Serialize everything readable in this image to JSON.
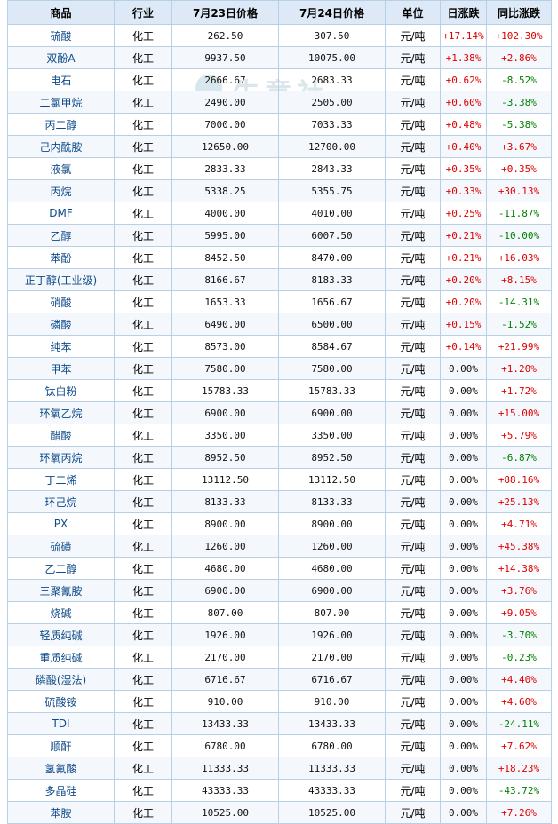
{
  "headers": [
    "商品",
    "行业",
    "7月23日价格",
    "7月24日价格",
    "单位",
    "日涨跌",
    "同比涨跌"
  ],
  "watermark": {
    "text": "生意社",
    "sub": "www.100ppi.com"
  },
  "rows": [
    {
      "name": "硫酸",
      "ind": "化工",
      "p1": "262.50",
      "p2": "307.50",
      "unit": "元/吨",
      "d": "+17.14%",
      "y": "+102.30%"
    },
    {
      "name": "双酚A",
      "ind": "化工",
      "p1": "9937.50",
      "p2": "10075.00",
      "unit": "元/吨",
      "d": "+1.38%",
      "y": "+2.86%"
    },
    {
      "name": "电石",
      "ind": "化工",
      "p1": "2666.67",
      "p2": "2683.33",
      "unit": "元/吨",
      "d": "+0.62%",
      "y": "-8.52%"
    },
    {
      "name": "二氯甲烷",
      "ind": "化工",
      "p1": "2490.00",
      "p2": "2505.00",
      "unit": "元/吨",
      "d": "+0.60%",
      "y": "-3.38%"
    },
    {
      "name": "丙二醇",
      "ind": "化工",
      "p1": "7000.00",
      "p2": "7033.33",
      "unit": "元/吨",
      "d": "+0.48%",
      "y": "-5.38%"
    },
    {
      "name": "己内酰胺",
      "ind": "化工",
      "p1": "12650.00",
      "p2": "12700.00",
      "unit": "元/吨",
      "d": "+0.40%",
      "y": "+3.67%"
    },
    {
      "name": "液氯",
      "ind": "化工",
      "p1": "2833.33",
      "p2": "2843.33",
      "unit": "元/吨",
      "d": "+0.35%",
      "y": "+0.35%"
    },
    {
      "name": "丙烷",
      "ind": "化工",
      "p1": "5338.25",
      "p2": "5355.75",
      "unit": "元/吨",
      "d": "+0.33%",
      "y": "+30.13%"
    },
    {
      "name": "DMF",
      "ind": "化工",
      "p1": "4000.00",
      "p2": "4010.00",
      "unit": "元/吨",
      "d": "+0.25%",
      "y": "-11.87%"
    },
    {
      "name": "乙醇",
      "ind": "化工",
      "p1": "5995.00",
      "p2": "6007.50",
      "unit": "元/吨",
      "d": "+0.21%",
      "y": "-10.00%"
    },
    {
      "name": "苯酚",
      "ind": "化工",
      "p1": "8452.50",
      "p2": "8470.00",
      "unit": "元/吨",
      "d": "+0.21%",
      "y": "+16.03%"
    },
    {
      "name": "正丁醇(工业级)",
      "ind": "化工",
      "p1": "8166.67",
      "p2": "8183.33",
      "unit": "元/吨",
      "d": "+0.20%",
      "y": "+8.15%"
    },
    {
      "name": "硝酸",
      "ind": "化工",
      "p1": "1653.33",
      "p2": "1656.67",
      "unit": "元/吨",
      "d": "+0.20%",
      "y": "-14.31%"
    },
    {
      "name": "磷酸",
      "ind": "化工",
      "p1": "6490.00",
      "p2": "6500.00",
      "unit": "元/吨",
      "d": "+0.15%",
      "y": "-1.52%"
    },
    {
      "name": "纯苯",
      "ind": "化工",
      "p1": "8573.00",
      "p2": "8584.67",
      "unit": "元/吨",
      "d": "+0.14%",
      "y": "+21.99%"
    },
    {
      "name": "甲苯",
      "ind": "化工",
      "p1": "7580.00",
      "p2": "7580.00",
      "unit": "元/吨",
      "d": "0.00%",
      "y": "+1.20%"
    },
    {
      "name": "钛白粉",
      "ind": "化工",
      "p1": "15783.33",
      "p2": "15783.33",
      "unit": "元/吨",
      "d": "0.00%",
      "y": "+1.72%"
    },
    {
      "name": "环氧乙烷",
      "ind": "化工",
      "p1": "6900.00",
      "p2": "6900.00",
      "unit": "元/吨",
      "d": "0.00%",
      "y": "+15.00%"
    },
    {
      "name": "醋酸",
      "ind": "化工",
      "p1": "3350.00",
      "p2": "3350.00",
      "unit": "元/吨",
      "d": "0.00%",
      "y": "+5.79%"
    },
    {
      "name": "环氧丙烷",
      "ind": "化工",
      "p1": "8952.50",
      "p2": "8952.50",
      "unit": "元/吨",
      "d": "0.00%",
      "y": "-6.87%"
    },
    {
      "name": "丁二烯",
      "ind": "化工",
      "p1": "13112.50",
      "p2": "13112.50",
      "unit": "元/吨",
      "d": "0.00%",
      "y": "+88.16%"
    },
    {
      "name": "环己烷",
      "ind": "化工",
      "p1": "8133.33",
      "p2": "8133.33",
      "unit": "元/吨",
      "d": "0.00%",
      "y": "+25.13%"
    },
    {
      "name": "PX",
      "ind": "化工",
      "p1": "8900.00",
      "p2": "8900.00",
      "unit": "元/吨",
      "d": "0.00%",
      "y": "+4.71%"
    },
    {
      "name": "硫磺",
      "ind": "化工",
      "p1": "1260.00",
      "p2": "1260.00",
      "unit": "元/吨",
      "d": "0.00%",
      "y": "+45.38%"
    },
    {
      "name": "乙二醇",
      "ind": "化工",
      "p1": "4680.00",
      "p2": "4680.00",
      "unit": "元/吨",
      "d": "0.00%",
      "y": "+14.38%"
    },
    {
      "name": "三聚氰胺",
      "ind": "化工",
      "p1": "6900.00",
      "p2": "6900.00",
      "unit": "元/吨",
      "d": "0.00%",
      "y": "+3.76%"
    },
    {
      "name": "烧碱",
      "ind": "化工",
      "p1": "807.00",
      "p2": "807.00",
      "unit": "元/吨",
      "d": "0.00%",
      "y": "+9.05%"
    },
    {
      "name": "轻质纯碱",
      "ind": "化工",
      "p1": "1926.00",
      "p2": "1926.00",
      "unit": "元/吨",
      "d": "0.00%",
      "y": "-3.70%"
    },
    {
      "name": "重质纯碱",
      "ind": "化工",
      "p1": "2170.00",
      "p2": "2170.00",
      "unit": "元/吨",
      "d": "0.00%",
      "y": "-0.23%"
    },
    {
      "name": "磷酸(湿法)",
      "ind": "化工",
      "p1": "6716.67",
      "p2": "6716.67",
      "unit": "元/吨",
      "d": "0.00%",
      "y": "+4.40%"
    },
    {
      "name": "硫酸铵",
      "ind": "化工",
      "p1": "910.00",
      "p2": "910.00",
      "unit": "元/吨",
      "d": "0.00%",
      "y": "+4.60%"
    },
    {
      "name": "TDI",
      "ind": "化工",
      "p1": "13433.33",
      "p2": "13433.33",
      "unit": "元/吨",
      "d": "0.00%",
      "y": "-24.11%"
    },
    {
      "name": "顺酐",
      "ind": "化工",
      "p1": "6780.00",
      "p2": "6780.00",
      "unit": "元/吨",
      "d": "0.00%",
      "y": "+7.62%"
    },
    {
      "name": "氢氟酸",
      "ind": "化工",
      "p1": "11333.33",
      "p2": "11333.33",
      "unit": "元/吨",
      "d": "0.00%",
      "y": "+18.23%"
    },
    {
      "name": "多晶硅",
      "ind": "化工",
      "p1": "43333.33",
      "p2": "43333.33",
      "unit": "元/吨",
      "d": "0.00%",
      "y": "-43.72%"
    },
    {
      "name": "苯胺",
      "ind": "化工",
      "p1": "10525.00",
      "p2": "10525.00",
      "unit": "元/吨",
      "d": "0.00%",
      "y": "+7.26%"
    }
  ],
  "colors": {
    "up": "#e00000",
    "down": "#008000",
    "header_bg": "#dde9f6",
    "border": "#b8d0e6",
    "link": "#0e4a8a"
  }
}
